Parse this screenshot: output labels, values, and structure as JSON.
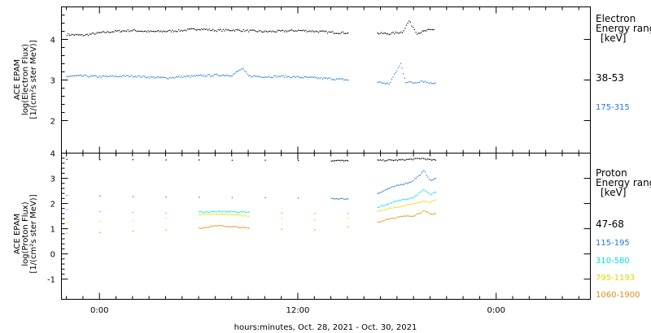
{
  "colors": {
    "frame": "#000000",
    "black": "#000000",
    "blue": "#1f77d4",
    "cyan": "#00e0e0",
    "yellow": "#e0e000",
    "orange": "#e08a1c"
  },
  "xaxis": {
    "title": "hours:minutes, Oct. 28, 2021 - Oct. 30, 2021",
    "tick_labels": [
      "0:00",
      "12:00",
      "0:00"
    ],
    "tick_hours": [
      0,
      12,
      24
    ],
    "range_hours": [
      -2.3,
      29.7
    ]
  },
  "panels": {
    "electron": {
      "ylabel": [
        "ACE EPAM",
        "log(Electron Flux)",
        "[1/(cm²s ster MeV)]"
      ],
      "ytick_labels": [
        "4",
        "3",
        "2"
      ],
      "legend_title": [
        "Electron",
        "Energy range",
        "[keV]"
      ],
      "legend": [
        "38-53",
        "175-315"
      ]
    },
    "proton": {
      "ylabel": [
        "ACE EPAM",
        "log(Proton Flux)",
        "[1/(cm²s ster MeV)]"
      ],
      "ytick_labels": [
        "4",
        "3",
        "2",
        "1",
        "0",
        "-1"
      ],
      "legend_title": [
        "Proton",
        "Energy range",
        "[keV]"
      ],
      "legend": [
        "47-68",
        "115-195",
        "310-580",
        "795-1193",
        "1060-1900"
      ]
    }
  },
  "chart_data": [
    {
      "type": "scatter",
      "title": "",
      "xlabel": "hours:minutes, Oct. 28, 2021 - Oct. 30, 2021",
      "ylabel": "ACE EPAM log(Electron Flux) [1/(cm²s ster MeV)]",
      "xlim": [
        -2.3,
        29.7
      ],
      "ylim": [
        1.2,
        4.8
      ],
      "yticks": [
        2,
        3,
        4
      ],
      "legend_title": "Electron Energy range [keV]",
      "series": [
        {
          "name": "38-53",
          "color": "black",
          "points": [
            [
              -2.0,
              4.12
            ],
            [
              -1.0,
              4.1
            ],
            [
              0.0,
              4.16
            ],
            [
              1.0,
              4.2
            ],
            [
              2.0,
              4.22
            ],
            [
              3.0,
              4.19
            ],
            [
              4.0,
              4.2
            ],
            [
              5.0,
              4.22
            ],
            [
              6.0,
              4.26
            ],
            [
              7.0,
              4.22
            ],
            [
              8.0,
              4.23
            ],
            [
              9.0,
              4.21
            ],
            [
              10.0,
              4.19
            ],
            [
              11.0,
              4.2
            ],
            [
              12.0,
              4.22
            ],
            [
              13.0,
              4.2
            ],
            [
              14.0,
              4.17
            ],
            [
              15.0,
              4.16
            ],
            [
              16.8,
              4.15
            ],
            [
              17.5,
              4.14
            ],
            [
              18.3,
              4.18
            ],
            [
              18.7,
              4.45
            ],
            [
              19.2,
              4.15
            ],
            [
              19.8,
              4.22
            ],
            [
              20.2,
              4.24
            ]
          ]
        },
        {
          "name": "175-315",
          "color": "blue",
          "points": [
            [
              -2.0,
              3.09
            ],
            [
              -1.0,
              3.1
            ],
            [
              0.0,
              3.08
            ],
            [
              1.0,
              3.09
            ],
            [
              2.0,
              3.1
            ],
            [
              3.0,
              3.07
            ],
            [
              4.0,
              3.05
            ],
            [
              5.0,
              3.08
            ],
            [
              6.0,
              3.1
            ],
            [
              7.0,
              3.12
            ],
            [
              8.0,
              3.12
            ],
            [
              8.6,
              3.28
            ],
            [
              9.0,
              3.1
            ],
            [
              10.0,
              3.08
            ],
            [
              11.0,
              3.09
            ],
            [
              12.0,
              3.07
            ],
            [
              13.0,
              3.05
            ],
            [
              14.0,
              3.03
            ],
            [
              15.0,
              3.0
            ],
            [
              16.8,
              2.95
            ],
            [
              17.5,
              2.9
            ],
            [
              18.2,
              3.4
            ],
            [
              18.5,
              2.95
            ],
            [
              19.0,
              2.93
            ],
            [
              19.5,
              2.98
            ],
            [
              20.0,
              2.92
            ],
            [
              20.3,
              2.93
            ]
          ]
        }
      ]
    },
    {
      "type": "scatter",
      "title": "",
      "xlabel": "hours:minutes, Oct. 28, 2021 - Oct. 30, 2021",
      "ylabel": "ACE EPAM log(Proton Flux) [1/(cm²s ster MeV)]",
      "xlim": [
        -2.3,
        29.7
      ],
      "ylim": [
        -1.8,
        4.0
      ],
      "yticks": [
        -1,
        0,
        1,
        2,
        3,
        4
      ],
      "legend_title": "Proton Energy range [keV]",
      "series": [
        {
          "name": "47-68",
          "color": "black",
          "points": [
            [
              -2.0,
              3.75
            ],
            [
              0.0,
              3.74
            ],
            [
              2.0,
              3.74
            ],
            [
              4.0,
              3.73
            ],
            [
              6.0,
              3.73
            ],
            [
              8.0,
              3.72
            ],
            [
              10.0,
              3.72
            ],
            [
              12.0,
              3.71
            ],
            [
              14.0,
              3.7
            ],
            [
              15.0,
              3.7
            ],
            [
              16.8,
              3.71
            ],
            [
              18.0,
              3.72
            ],
            [
              19.0,
              3.76
            ],
            [
              19.5,
              3.79
            ],
            [
              20.0,
              3.73
            ],
            [
              20.3,
              3.72
            ]
          ]
        },
        {
          "name": "115-195",
          "color": "blue",
          "points": [
            [
              -2.0,
              2.32
            ],
            [
              0.0,
              2.3
            ],
            [
              2.0,
              2.28
            ],
            [
              4.0,
              2.26
            ],
            [
              6.0,
              2.25
            ],
            [
              8.0,
              2.24
            ],
            [
              10.0,
              2.23
            ],
            [
              12.0,
              2.22
            ],
            [
              14.0,
              2.2
            ],
            [
              15.0,
              2.18
            ],
            [
              16.8,
              2.4
            ],
            [
              17.5,
              2.6
            ],
            [
              18.2,
              2.75
            ],
            [
              18.8,
              2.85
            ],
            [
              19.3,
              3.1
            ],
            [
              19.6,
              3.3
            ],
            [
              20.0,
              2.9
            ],
            [
              20.3,
              3.0
            ]
          ]
        },
        {
          "name": "310-580",
          "color": "cyan",
          "points": [
            [
              -2.0,
              1.75
            ],
            [
              0.0,
              1.68
            ],
            [
              2.0,
              1.65
            ],
            [
              4.0,
              1.62
            ],
            [
              6.0,
              1.66
            ],
            [
              7.5,
              1.68
            ],
            [
              9.0,
              1.66
            ],
            [
              11.0,
              1.62
            ],
            [
              13.0,
              1.6
            ],
            [
              15.0,
              1.6
            ],
            [
              16.8,
              1.85
            ],
            [
              17.5,
              2.0
            ],
            [
              18.3,
              2.15
            ],
            [
              19.0,
              2.25
            ],
            [
              19.6,
              2.55
            ],
            [
              20.0,
              2.35
            ],
            [
              20.3,
              2.45
            ]
          ]
        },
        {
          "name": "795-1193",
          "color": "yellow",
          "points": [
            [
              -2.0,
              1.25
            ],
            [
              0.0,
              1.28
            ],
            [
              2.0,
              1.32
            ],
            [
              4.0,
              1.42
            ],
            [
              6.0,
              1.55
            ],
            [
              7.5,
              1.58
            ],
            [
              9.0,
              1.5
            ],
            [
              11.0,
              1.4
            ],
            [
              13.0,
              1.35
            ],
            [
              15.0,
              1.4
            ],
            [
              16.8,
              1.7
            ],
            [
              17.5,
              1.8
            ],
            [
              18.3,
              1.9
            ],
            [
              19.0,
              2.0
            ],
            [
              19.6,
              2.1
            ],
            [
              20.0,
              2.05
            ],
            [
              20.3,
              2.15
            ]
          ]
        },
        {
          "name": "1060-1900",
          "color": "orange",
          "points": [
            [
              -2.0,
              0.82
            ],
            [
              0.0,
              0.85
            ],
            [
              2.0,
              0.9
            ],
            [
              4.0,
              0.95
            ],
            [
              6.0,
              1.02
            ],
            [
              7.0,
              1.12
            ],
            [
              8.0,
              1.08
            ],
            [
              9.0,
              1.02
            ],
            [
              11.0,
              0.98
            ],
            [
              13.0,
              0.95
            ],
            [
              15.0,
              1.08
            ],
            [
              16.8,
              1.25
            ],
            [
              17.5,
              1.4
            ],
            [
              18.3,
              1.48
            ],
            [
              19.0,
              1.52
            ],
            [
              19.6,
              1.7
            ],
            [
              20.0,
              1.58
            ],
            [
              20.3,
              1.6
            ]
          ]
        }
      ]
    }
  ]
}
